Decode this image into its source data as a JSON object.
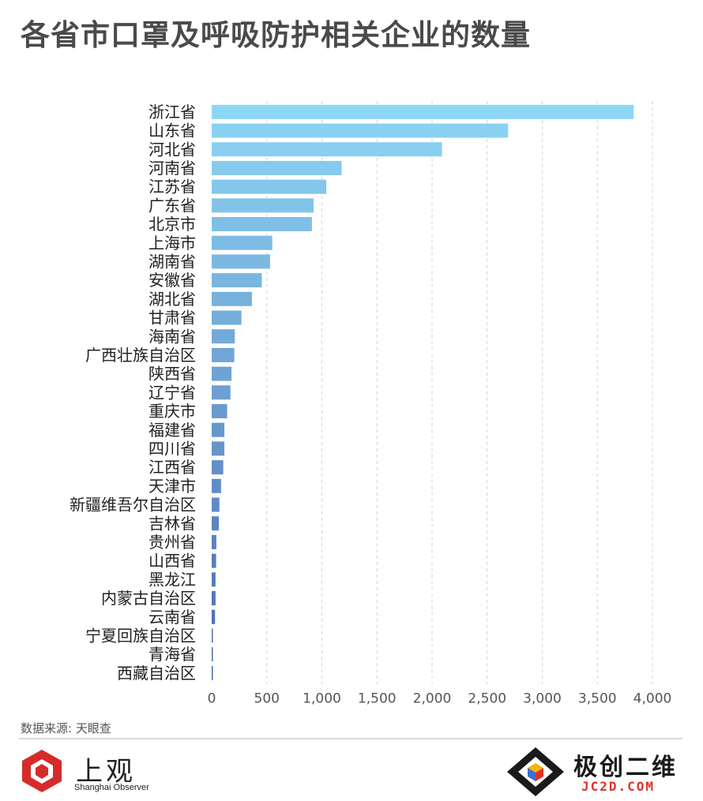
{
  "title": "各省市口罩及呼吸防护相关企业的数量",
  "source": "数据来源: 天眼查",
  "logo_left": {
    "name": "上观",
    "sub": "Shanghai Observer"
  },
  "logo_right": {
    "name": "极创二维",
    "sub": "JC2D.COM"
  },
  "chart_data": {
    "type": "bar",
    "orientation": "horizontal",
    "categories": [
      "浙江省",
      "山东省",
      "河北省",
      "河南省",
      "江苏省",
      "广东省",
      "北京市",
      "上海市",
      "湖南省",
      "安徽省",
      "湖北省",
      "甘肃省",
      "海南省",
      "广西壮族自治区",
      "陕西省",
      "辽宁省",
      "重庆市",
      "福建省",
      "四川省",
      "江西省",
      "天津市",
      "新疆维吾尔自治区",
      "吉林省",
      "贵州省",
      "山西省",
      "黑龙江",
      "内蒙古自治区",
      "云南省",
      "宁夏回族自治区",
      "青海省",
      "西藏自治区"
    ],
    "values": [
      3830,
      2690,
      2090,
      1180,
      1040,
      925,
      910,
      550,
      530,
      455,
      365,
      270,
      210,
      205,
      180,
      170,
      140,
      115,
      115,
      105,
      85,
      70,
      65,
      42,
      40,
      35,
      35,
      30,
      10,
      10,
      3
    ],
    "xlim": [
      0,
      4000
    ],
    "xticks": [
      0,
      500,
      1000,
      1500,
      2000,
      2500,
      3000,
      3500,
      4000
    ],
    "xtick_labels": [
      "0",
      "500",
      "1,000",
      "1,500",
      "2,000",
      "2,500",
      "3,000",
      "3,500",
      "4,000"
    ],
    "grid": true,
    "color_start": "#8dd6f4",
    "color_end": "#4a68b0"
  }
}
